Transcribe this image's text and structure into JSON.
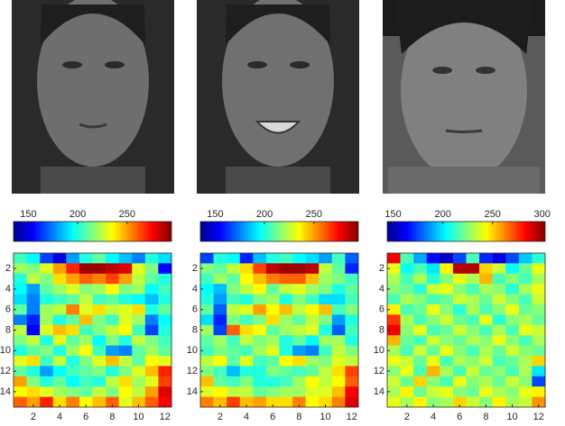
{
  "chart_data": [
    {
      "type": "heatmap",
      "clim": [
        135,
        295
      ],
      "cticks": [
        150,
        200,
        250
      ],
      "xlim": [
        0.5,
        12.5
      ],
      "xticks": [
        2,
        4,
        6,
        8,
        10,
        12
      ],
      "ylim": [
        0.5,
        15.5
      ],
      "yticks": [
        2,
        4,
        6,
        8,
        10,
        12,
        14
      ],
      "y_reversed": true,
      "values": [
        [
          205,
          195,
          165,
          150,
          180,
          200,
          210,
          195,
          185,
          175,
          200,
          190
        ],
        [
          220,
          215,
          230,
          250,
          270,
          290,
          290,
          285,
          280,
          230,
          215,
          155
        ],
        [
          200,
          225,
          215,
          240,
          250,
          260,
          255,
          265,
          250,
          225,
          210,
          200
        ],
        [
          195,
          180,
          210,
          220,
          230,
          215,
          220,
          235,
          215,
          220,
          195,
          205
        ],
        [
          190,
          175,
          200,
          205,
          210,
          225,
          205,
          210,
          200,
          195,
          185,
          200
        ],
        [
          210,
          175,
          220,
          225,
          255,
          230,
          240,
          225,
          230,
          240,
          200,
          210
        ],
        [
          175,
          160,
          220,
          200,
          210,
          245,
          215,
          205,
          230,
          220,
          175,
          195
        ],
        [
          225,
          155,
          230,
          245,
          240,
          205,
          215,
          225,
          235,
          205,
          165,
          200
        ],
        [
          215,
          225,
          200,
          230,
          210,
          220,
          195,
          215,
          200,
          225,
          215,
          205
        ],
        [
          200,
          210,
          215,
          200,
          220,
          235,
          205,
          180,
          175,
          210,
          220,
          210
        ],
        [
          230,
          240,
          205,
          225,
          200,
          215,
          230,
          245,
          225,
          210,
          235,
          230
        ],
        [
          210,
          200,
          180,
          195,
          205,
          210,
          215,
          200,
          215,
          230,
          245,
          270
        ],
        [
          250,
          215,
          200,
          210,
          195,
          205,
          200,
          225,
          240,
          220,
          230,
          265
        ],
        [
          235,
          240,
          230,
          220,
          215,
          210,
          225,
          215,
          235,
          225,
          250,
          280
        ],
        [
          260,
          250,
          270,
          240,
          255,
          235,
          245,
          260,
          230,
          245,
          260,
          275
        ]
      ]
    },
    {
      "type": "heatmap",
      "clim": [
        135,
        295
      ],
      "cticks": [
        150,
        200,
        250
      ],
      "xlim": [
        0.5,
        12.5
      ],
      "xticks": [
        2,
        4,
        6,
        8,
        10,
        12
      ],
      "ylim": [
        0.5,
        15.5
      ],
      "yticks": [
        2,
        4,
        6,
        8,
        10,
        12,
        14
      ],
      "y_reversed": true,
      "values": [
        [
          165,
          200,
          195,
          160,
          185,
          200,
          205,
          195,
          190,
          180,
          205,
          170
        ],
        [
          215,
          210,
          225,
          240,
          265,
          285,
          290,
          290,
          285,
          225,
          210,
          160
        ],
        [
          205,
          220,
          210,
          235,
          245,
          255,
          260,
          260,
          245,
          220,
          215,
          205
        ],
        [
          195,
          185,
          215,
          225,
          235,
          210,
          225,
          230,
          220,
          215,
          200,
          210
        ],
        [
          200,
          180,
          205,
          200,
          215,
          220,
          200,
          215,
          205,
          190,
          190,
          205
        ],
        [
          210,
          170,
          225,
          230,
          250,
          235,
          245,
          225,
          235,
          245,
          205,
          215
        ],
        [
          190,
          160,
          215,
          205,
          215,
          240,
          220,
          210,
          225,
          215,
          180,
          200
        ],
        [
          220,
          165,
          260,
          240,
          235,
          210,
          220,
          225,
          230,
          200,
          170,
          205
        ],
        [
          210,
          220,
          205,
          225,
          215,
          220,
          200,
          210,
          195,
          220,
          220,
          200
        ],
        [
          205,
          215,
          210,
          205,
          220,
          230,
          200,
          180,
          175,
          205,
          225,
          215
        ],
        [
          225,
          235,
          210,
          230,
          205,
          210,
          235,
          240,
          220,
          215,
          230,
          225
        ],
        [
          215,
          205,
          185,
          200,
          200,
          215,
          210,
          205,
          210,
          225,
          240,
          265
        ],
        [
          245,
          210,
          205,
          215,
          200,
          200,
          205,
          220,
          235,
          225,
          235,
          260
        ],
        [
          230,
          235,
          225,
          225,
          210,
          215,
          220,
          220,
          230,
          230,
          245,
          275
        ],
        [
          255,
          245,
          265,
          245,
          250,
          240,
          240,
          255,
          235,
          240,
          255,
          280
        ]
      ]
    },
    {
      "type": "heatmap",
      "clim": [
        144,
        303
      ],
      "cticks": [
        150,
        200,
        250,
        300
      ],
      "xlim": [
        0.5,
        12.5
      ],
      "xticks": [
        2,
        4,
        6,
        8,
        10,
        12
      ],
      "ylim": [
        0.5,
        15.5
      ],
      "yticks": [
        2,
        4,
        6,
        8,
        10,
        12,
        14
      ],
      "y_reversed": true,
      "values": [
        [
          285,
          215,
          190,
          165,
          155,
          175,
          215,
          170,
          160,
          175,
          195,
          210
        ],
        [
          240,
          205,
          215,
          200,
          245,
          295,
          295,
          250,
          235,
          205,
          220,
          240
        ],
        [
          230,
          215,
          230,
          210,
          225,
          240,
          230,
          255,
          215,
          225,
          215,
          230
        ],
        [
          225,
          220,
          210,
          235,
          240,
          225,
          215,
          230,
          225,
          210,
          230,
          240
        ],
        [
          215,
          230,
          225,
          215,
          220,
          235,
          230,
          220,
          235,
          225,
          215,
          235
        ],
        [
          245,
          215,
          220,
          240,
          225,
          210,
          230,
          215,
          225,
          240,
          220,
          225
        ],
        [
          275,
          230,
          215,
          225,
          235,
          220,
          215,
          240,
          210,
          225,
          230,
          220
        ],
        [
          285,
          225,
          240,
          215,
          220,
          235,
          225,
          215,
          230,
          215,
          240,
          235
        ],
        [
          255,
          220,
          215,
          235,
          225,
          220,
          230,
          225,
          240,
          225,
          215,
          230
        ],
        [
          230,
          215,
          235,
          220,
          240,
          225,
          215,
          230,
          220,
          235,
          225,
          220
        ],
        [
          240,
          235,
          220,
          240,
          215,
          230,
          225,
          235,
          215,
          220,
          230,
          250
        ],
        [
          225,
          240,
          215,
          255,
          230,
          215,
          235,
          220,
          225,
          215,
          230,
          200
        ],
        [
          235,
          220,
          250,
          225,
          215,
          240,
          225,
          230,
          220,
          235,
          225,
          175
        ],
        [
          230,
          245,
          220,
          235,
          240,
          225,
          220,
          240,
          230,
          225,
          240,
          245
        ],
        [
          240,
          230,
          245,
          225,
          230,
          250,
          235,
          225,
          245,
          230,
          235,
          260
        ]
      ]
    }
  ]
}
